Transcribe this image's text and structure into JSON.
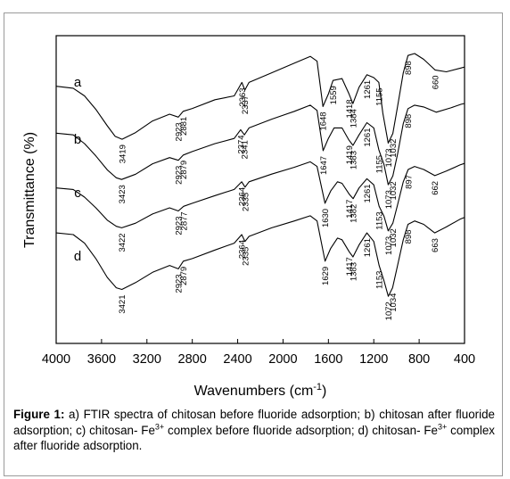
{
  "chart_data": {
    "type": "line",
    "title": "",
    "xlabel": "Wavenumbers (cm",
    "xlabel_sup": "-1",
    "xlabel_close": ")",
    "ylabel": "Transmittance (%)",
    "xlim": [
      4000,
      400
    ],
    "x_reversed": true,
    "xticks": [
      4000,
      3600,
      3200,
      2800,
      2400,
      2000,
      1600,
      1200,
      800,
      400
    ],
    "xtick_labels": [
      "4000",
      "3600",
      "3200",
      "2800",
      "2400",
      "2000",
      "1600",
      "1200",
      "800",
      "400"
    ],
    "y_ticks_shown": false,
    "grid": false,
    "series": [
      {
        "name": "a",
        "points": [
          [
            4000,
            0.34
          ],
          [
            3850,
            0.36
          ],
          [
            3750,
            0.44
          ],
          [
            3650,
            0.58
          ],
          [
            3550,
            0.75
          ],
          [
            3480,
            0.86
          ],
          [
            3419,
            0.89
          ],
          [
            3300,
            0.82
          ],
          [
            3150,
            0.7
          ],
          [
            3000,
            0.63
          ],
          [
            2923,
            0.66
          ],
          [
            2881,
            0.6
          ],
          [
            2800,
            0.57
          ],
          [
            2600,
            0.48
          ],
          [
            2430,
            0.44
          ],
          [
            2363,
            0.3
          ],
          [
            2337,
            0.38
          ],
          [
            2300,
            0.3
          ],
          [
            2100,
            0.2
          ],
          [
            1900,
            0.1
          ],
          [
            1760,
            0.03
          ],
          [
            1700,
            0.08
          ],
          [
            1648,
            0.55
          ],
          [
            1600,
            0.42
          ],
          [
            1559,
            0.28
          ],
          [
            1480,
            0.26
          ],
          [
            1418,
            0.42
          ],
          [
            1384,
            0.52
          ],
          [
            1330,
            0.35
          ],
          [
            1261,
            0.22
          ],
          [
            1200,
            0.25
          ],
          [
            1155,
            0.3
          ],
          [
            1120,
            0.62
          ],
          [
            1073,
            0.93
          ],
          [
            1032,
            0.83
          ],
          [
            990,
            0.55
          ],
          [
            940,
            0.2
          ],
          [
            898,
            0.02
          ],
          [
            840,
            0.0
          ],
          [
            760,
            0.06
          ],
          [
            660,
            0.17
          ],
          [
            560,
            0.19
          ],
          [
            430,
            0.15
          ],
          [
            400,
            0.14
          ]
        ],
        "labels": [
          {
            "text": "3419",
            "x": 3419
          },
          {
            "text": "2923",
            "x": 2923
          },
          {
            "text": "2881",
            "x": 2881
          },
          {
            "text": "2363",
            "x": 2363
          },
          {
            "text": "2337",
            "x": 2337
          },
          {
            "text": "1648",
            "x": 1648
          },
          {
            "text": "1559",
            "x": 1559
          },
          {
            "text": "1418",
            "x": 1418
          },
          {
            "text": "1384",
            "x": 1384
          },
          {
            "text": "1261",
            "x": 1261
          },
          {
            "text": "1155",
            "x": 1155
          },
          {
            "text": "1073",
            "x": 1073
          },
          {
            "text": "1032",
            "x": 1032
          },
          {
            "text": "898",
            "x": 898
          },
          {
            "text": "660",
            "x": 660
          }
        ]
      },
      {
        "name": "b",
        "points": [
          [
            4000,
            0.36
          ],
          [
            3850,
            0.38
          ],
          [
            3750,
            0.48
          ],
          [
            3650,
            0.62
          ],
          [
            3550,
            0.78
          ],
          [
            3470,
            0.87
          ],
          [
            3423,
            0.89
          ],
          [
            3300,
            0.83
          ],
          [
            3150,
            0.71
          ],
          [
            3000,
            0.64
          ],
          [
            2923,
            0.67
          ],
          [
            2879,
            0.61
          ],
          [
            2800,
            0.57
          ],
          [
            2600,
            0.48
          ],
          [
            2430,
            0.42
          ],
          [
            2374,
            0.32
          ],
          [
            2341,
            0.38
          ],
          [
            2300,
            0.3
          ],
          [
            2100,
            0.2
          ],
          [
            1900,
            0.11
          ],
          [
            1760,
            0.04
          ],
          [
            1700,
            0.1
          ],
          [
            1647,
            0.56
          ],
          [
            1600,
            0.42
          ],
          [
            1550,
            0.3
          ],
          [
            1480,
            0.3
          ],
          [
            1419,
            0.44
          ],
          [
            1383,
            0.5
          ],
          [
            1330,
            0.38
          ],
          [
            1261,
            0.24
          ],
          [
            1200,
            0.3
          ],
          [
            1155,
            0.55
          ],
          [
            1110,
            0.72
          ],
          [
            1073,
            0.95
          ],
          [
            1032,
            0.85
          ],
          [
            990,
            0.6
          ],
          [
            940,
            0.25
          ],
          [
            898,
            0.08
          ],
          [
            840,
            0.04
          ],
          [
            760,
            0.06
          ],
          [
            650,
            0.12
          ],
          [
            520,
            0.07
          ],
          [
            430,
            0.03
          ],
          [
            400,
            0.02
          ]
        ],
        "labels": [
          {
            "text": "3423",
            "x": 3423
          },
          {
            "text": "2923",
            "x": 2923
          },
          {
            "text": "2879",
            "x": 2879
          },
          {
            "text": "2374",
            "x": 2374
          },
          {
            "text": "2341",
            "x": 2341
          },
          {
            "text": "1647",
            "x": 1647
          },
          {
            "text": "1419",
            "x": 1419
          },
          {
            "text": "1383",
            "x": 1383
          },
          {
            "text": "1261",
            "x": 1261
          },
          {
            "text": "1155",
            "x": 1155
          },
          {
            "text": "1073",
            "x": 1073
          },
          {
            "text": "1032",
            "x": 1032
          },
          {
            "text": "898",
            "x": 898
          }
        ]
      },
      {
        "name": "c",
        "points": [
          [
            4000,
            0.38
          ],
          [
            3850,
            0.4
          ],
          [
            3750,
            0.5
          ],
          [
            3650,
            0.64
          ],
          [
            3550,
            0.8
          ],
          [
            3470,
            0.88
          ],
          [
            3422,
            0.9
          ],
          [
            3300,
            0.84
          ],
          [
            3150,
            0.72
          ],
          [
            3000,
            0.64
          ],
          [
            2923,
            0.68
          ],
          [
            2877,
            0.62
          ],
          [
            2800,
            0.58
          ],
          [
            2600,
            0.48
          ],
          [
            2430,
            0.4
          ],
          [
            2364,
            0.3
          ],
          [
            2335,
            0.37
          ],
          [
            2300,
            0.3
          ],
          [
            2100,
            0.2
          ],
          [
            1900,
            0.11
          ],
          [
            1760,
            0.04
          ],
          [
            1700,
            0.1
          ],
          [
            1630,
            0.58
          ],
          [
            1580,
            0.42
          ],
          [
            1520,
            0.3
          ],
          [
            1480,
            0.32
          ],
          [
            1417,
            0.46
          ],
          [
            1382,
            0.52
          ],
          [
            1330,
            0.38
          ],
          [
            1261,
            0.26
          ],
          [
            1200,
            0.34
          ],
          [
            1153,
            0.62
          ],
          [
            1110,
            0.75
          ],
          [
            1073,
            0.94
          ],
          [
            1032,
            0.84
          ],
          [
            990,
            0.6
          ],
          [
            940,
            0.3
          ],
          [
            897,
            0.14
          ],
          [
            840,
            0.1
          ],
          [
            760,
            0.14
          ],
          [
            662,
            0.22
          ],
          [
            560,
            0.16
          ],
          [
            440,
            0.08
          ],
          [
            400,
            0.06
          ]
        ],
        "labels": [
          {
            "text": "3422",
            "x": 3422
          },
          {
            "text": "2923",
            "x": 2923
          },
          {
            "text": "2877",
            "x": 2877
          },
          {
            "text": "2364",
            "x": 2364
          },
          {
            "text": "2335",
            "x": 2335
          },
          {
            "text": "1630",
            "x": 1630
          },
          {
            "text": "1417",
            "x": 1417
          },
          {
            "text": "1382",
            "x": 1382
          },
          {
            "text": "1261",
            "x": 1261
          },
          {
            "text": "1153",
            "x": 1153
          },
          {
            "text": "1073",
            "x": 1073
          },
          {
            "text": "1032",
            "x": 1032
          },
          {
            "text": "897",
            "x": 897
          },
          {
            "text": "662",
            "x": 662
          }
        ]
      },
      {
        "name": "d",
        "points": [
          [
            4000,
            0.22
          ],
          [
            3850,
            0.24
          ],
          [
            3750,
            0.34
          ],
          [
            3650,
            0.52
          ],
          [
            3550,
            0.74
          ],
          [
            3470,
            0.86
          ],
          [
            3421,
            0.88
          ],
          [
            3300,
            0.8
          ],
          [
            3150,
            0.68
          ],
          [
            3000,
            0.6
          ],
          [
            2923,
            0.64
          ],
          [
            2879,
            0.55
          ],
          [
            2800,
            0.52
          ],
          [
            2600,
            0.42
          ],
          [
            2430,
            0.34
          ],
          [
            2364,
            0.24
          ],
          [
            2335,
            0.32
          ],
          [
            2300,
            0.26
          ],
          [
            2100,
            0.16
          ],
          [
            1900,
            0.08
          ],
          [
            1760,
            0.02
          ],
          [
            1700,
            0.08
          ],
          [
            1629,
            0.55
          ],
          [
            1580,
            0.4
          ],
          [
            1520,
            0.28
          ],
          [
            1480,
            0.3
          ],
          [
            1417,
            0.44
          ],
          [
            1383,
            0.5
          ],
          [
            1330,
            0.36
          ],
          [
            1261,
            0.22
          ],
          [
            1200,
            0.32
          ],
          [
            1153,
            0.6
          ],
          [
            1110,
            0.78
          ],
          [
            1072,
            0.96
          ],
          [
            1034,
            0.86
          ],
          [
            990,
            0.6
          ],
          [
            940,
            0.3
          ],
          [
            898,
            0.12
          ],
          [
            840,
            0.08
          ],
          [
            760,
            0.12
          ],
          [
            663,
            0.22
          ],
          [
            560,
            0.15
          ],
          [
            440,
            0.06
          ],
          [
            400,
            0.04
          ]
        ],
        "labels": [
          {
            "text": "3421",
            "x": 3421
          },
          {
            "text": "2923",
            "x": 2923
          },
          {
            "text": "2879",
            "x": 2879
          },
          {
            "text": "2364",
            "x": 2364
          },
          {
            "text": "2335",
            "x": 2335
          },
          {
            "text": "1629",
            "x": 1629
          },
          {
            "text": "1417",
            "x": 1417
          },
          {
            "text": "1383",
            "x": 1383
          },
          {
            "text": "1261",
            "x": 1261
          },
          {
            "text": "1153",
            "x": 1153
          },
          {
            "text": "1072",
            "x": 1072
          },
          {
            "text": "1034",
            "x": 1034
          },
          {
            "text": "898",
            "x": 898
          },
          {
            "text": "663",
            "x": 663
          }
        ]
      }
    ]
  },
  "caption": {
    "prefix": "Figure 1:",
    "part1": " a) FTIR spectra of chitosan before fluoride adsorption; b) chitosan after fluoride adsorption; c) chitosan- Fe",
    "sup1": "3+",
    "part2": " complex before fluoride adsorption; d) chitosan- Fe",
    "sup2": "3+",
    "part3": " complex after fluoride adsorption."
  }
}
